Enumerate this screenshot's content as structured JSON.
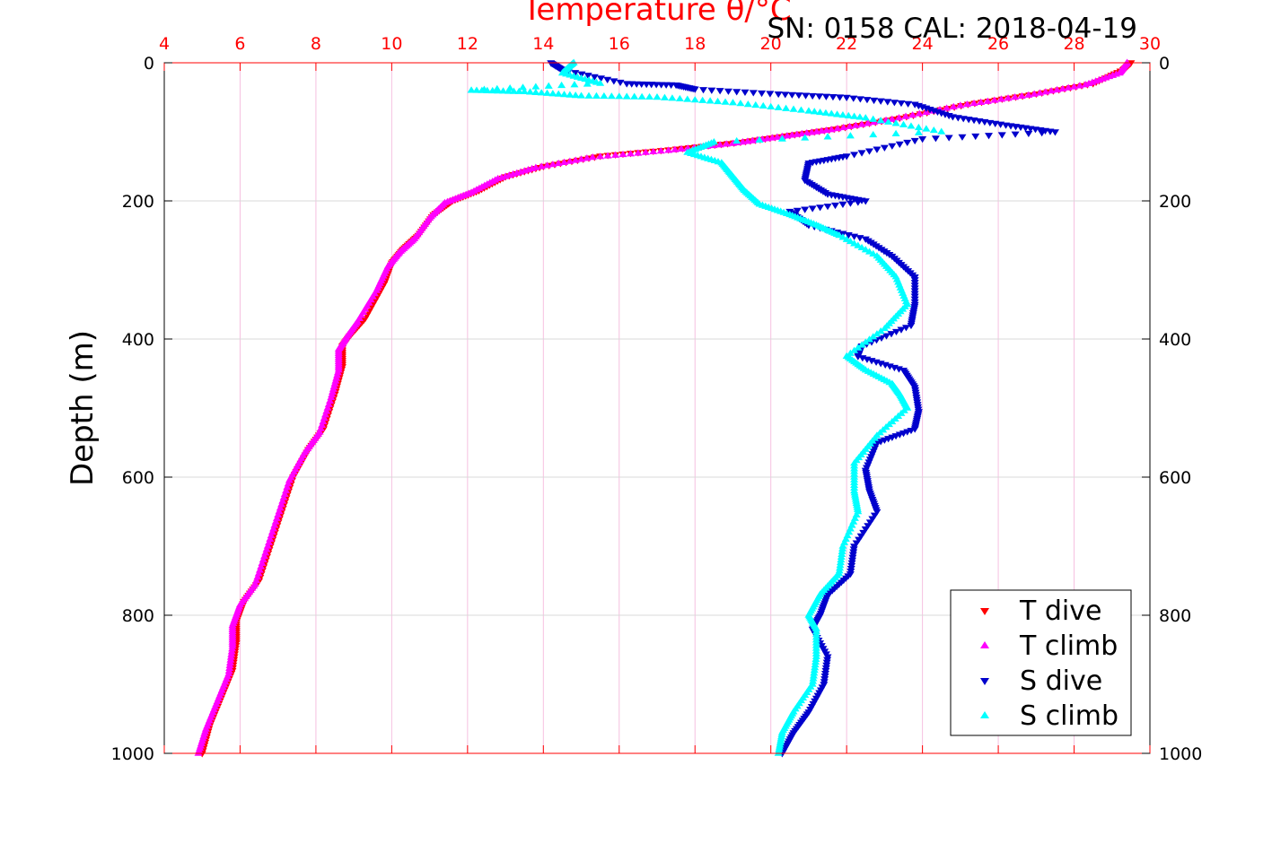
{
  "header": {
    "serial_cal": "SN: 0158  CAL: 2018-04-19"
  },
  "chart_data": {
    "type": "scatter",
    "title": "",
    "xlabel": "Temperature θ/°C",
    "ylabel": "Depth (m)",
    "xlim": [
      4,
      30
    ],
    "ylim": [
      0,
      1000
    ],
    "y_reversed": true,
    "x_ticks": [
      4,
      6,
      8,
      10,
      12,
      14,
      16,
      18,
      20,
      22,
      24,
      26,
      28,
      30
    ],
    "x_tick_labels": [
      "4",
      "6",
      "8",
      "10",
      "12",
      "14",
      "16",
      "18",
      "20",
      "22",
      "24",
      "26",
      "28",
      "30"
    ],
    "y_ticks": [
      0,
      200,
      400,
      600,
      800,
      1000
    ],
    "y_tick_labels": [
      "0",
      "200",
      "400",
      "600",
      "800",
      "1000"
    ],
    "grid": true,
    "legend_position": "bottom-right",
    "series": [
      {
        "name": "T dive",
        "color": "#ff0000",
        "marker": "triangle-down",
        "points": [
          [
            29.5,
            0
          ],
          [
            29.3,
            10
          ],
          [
            28.5,
            30
          ],
          [
            27.0,
            45
          ],
          [
            25.2,
            60
          ],
          [
            23.4,
            80
          ],
          [
            21.8,
            95
          ],
          [
            20.5,
            105
          ],
          [
            19.2,
            115
          ],
          [
            17.5,
            125
          ],
          [
            15.5,
            135
          ],
          [
            14.0,
            150
          ],
          [
            13.0,
            165
          ],
          [
            12.3,
            185
          ],
          [
            11.6,
            200
          ],
          [
            11.1,
            220
          ],
          [
            10.7,
            250
          ],
          [
            10.3,
            270
          ],
          [
            10.0,
            290
          ],
          [
            9.8,
            320
          ],
          [
            9.3,
            370
          ],
          [
            8.9,
            395
          ],
          [
            8.7,
            410
          ],
          [
            8.7,
            440
          ],
          [
            8.5,
            480
          ],
          [
            8.2,
            530
          ],
          [
            7.8,
            560
          ],
          [
            7.4,
            600
          ],
          [
            7.1,
            650
          ],
          [
            6.8,
            700
          ],
          [
            6.5,
            750
          ],
          [
            6.1,
            780
          ],
          [
            5.9,
            810
          ],
          [
            5.9,
            840
          ],
          [
            5.8,
            880
          ],
          [
            5.5,
            920
          ],
          [
            5.2,
            960
          ],
          [
            5.0,
            1000
          ]
        ]
      },
      {
        "name": "T climb",
        "color": "#ff00ff",
        "marker": "triangle-up",
        "points": [
          [
            29.4,
            0
          ],
          [
            29.2,
            15
          ],
          [
            28.3,
            32
          ],
          [
            26.8,
            47
          ],
          [
            25.0,
            62
          ],
          [
            23.2,
            82
          ],
          [
            21.6,
            97
          ],
          [
            20.3,
            107
          ],
          [
            19.0,
            117
          ],
          [
            17.3,
            127
          ],
          [
            15.3,
            137
          ],
          [
            13.8,
            152
          ],
          [
            12.8,
            168
          ],
          [
            12.1,
            188
          ],
          [
            11.4,
            203
          ],
          [
            11.0,
            225
          ],
          [
            10.6,
            255
          ],
          [
            10.2,
            275
          ],
          [
            9.9,
            295
          ],
          [
            9.6,
            330
          ],
          [
            9.1,
            375
          ],
          [
            8.8,
            398
          ],
          [
            8.6,
            415
          ],
          [
            8.6,
            445
          ],
          [
            8.4,
            485
          ],
          [
            8.1,
            535
          ],
          [
            7.7,
            565
          ],
          [
            7.3,
            605
          ],
          [
            7.0,
            655
          ],
          [
            6.7,
            705
          ],
          [
            6.4,
            755
          ],
          [
            6.0,
            785
          ],
          [
            5.8,
            815
          ],
          [
            5.8,
            845
          ],
          [
            5.7,
            885
          ],
          [
            5.4,
            925
          ],
          [
            5.1,
            965
          ],
          [
            4.9,
            1000
          ]
        ]
      },
      {
        "name": "S dive",
        "color": "#0000cc",
        "marker": "triangle-down",
        "points": [
          [
            14.2,
            0
          ],
          [
            14.5,
            10
          ],
          [
            16.2,
            30
          ],
          [
            17.5,
            32
          ],
          [
            18.0,
            38
          ],
          [
            20.2,
            45
          ],
          [
            22.0,
            50
          ],
          [
            23.8,
            60
          ],
          [
            24.8,
            78
          ],
          [
            26.2,
            90
          ],
          [
            27.5,
            100
          ],
          [
            24.0,
            110
          ],
          [
            22.0,
            135
          ],
          [
            21.0,
            145
          ],
          [
            20.9,
            170
          ],
          [
            21.5,
            190
          ],
          [
            22.5,
            200
          ],
          [
            20.5,
            215
          ],
          [
            21.0,
            235
          ],
          [
            22.5,
            255
          ],
          [
            23.2,
            280
          ],
          [
            23.8,
            310
          ],
          [
            23.8,
            350
          ],
          [
            23.7,
            380
          ],
          [
            22.4,
            410
          ],
          [
            22.3,
            425
          ],
          [
            23.5,
            445
          ],
          [
            23.8,
            470
          ],
          [
            23.9,
            505
          ],
          [
            23.8,
            530
          ],
          [
            22.8,
            550
          ],
          [
            22.5,
            590
          ],
          [
            22.6,
            620
          ],
          [
            22.8,
            650
          ],
          [
            22.2,
            700
          ],
          [
            22.1,
            740
          ],
          [
            21.5,
            770
          ],
          [
            21.3,
            800
          ],
          [
            21.1,
            820
          ],
          [
            21.5,
            860
          ],
          [
            21.4,
            900
          ],
          [
            21.0,
            940
          ],
          [
            20.6,
            970
          ],
          [
            20.3,
            1000
          ]
        ]
      },
      {
        "name": "S climb",
        "color": "#00ffff",
        "marker": "triangle-up",
        "points": [
          [
            14.8,
            0
          ],
          [
            14.5,
            15
          ],
          [
            15.5,
            30
          ],
          [
            12.1,
            40
          ],
          [
            13.5,
            42
          ],
          [
            15.0,
            48
          ],
          [
            17.0,
            50
          ],
          [
            19.0,
            58
          ],
          [
            21.0,
            70
          ],
          [
            22.5,
            80
          ],
          [
            24.5,
            100
          ],
          [
            18.5,
            115
          ],
          [
            17.8,
            130
          ],
          [
            18.7,
            145
          ],
          [
            19.0,
            165
          ],
          [
            19.3,
            185
          ],
          [
            19.7,
            205
          ],
          [
            20.5,
            220
          ],
          [
            21.2,
            235
          ],
          [
            21.8,
            250
          ],
          [
            22.8,
            280
          ],
          [
            23.3,
            310
          ],
          [
            23.6,
            350
          ],
          [
            23.0,
            385
          ],
          [
            22.0,
            425
          ],
          [
            22.5,
            445
          ],
          [
            23.2,
            465
          ],
          [
            23.4,
            480
          ],
          [
            23.6,
            500
          ],
          [
            22.8,
            540
          ],
          [
            22.2,
            580
          ],
          [
            22.2,
            620
          ],
          [
            22.3,
            650
          ],
          [
            21.9,
            700
          ],
          [
            21.8,
            740
          ],
          [
            21.3,
            770
          ],
          [
            21.0,
            800
          ],
          [
            21.2,
            820
          ],
          [
            21.2,
            860
          ],
          [
            21.1,
            900
          ],
          [
            20.6,
            940
          ],
          [
            20.3,
            970
          ],
          [
            20.2,
            1000
          ]
        ]
      }
    ]
  }
}
